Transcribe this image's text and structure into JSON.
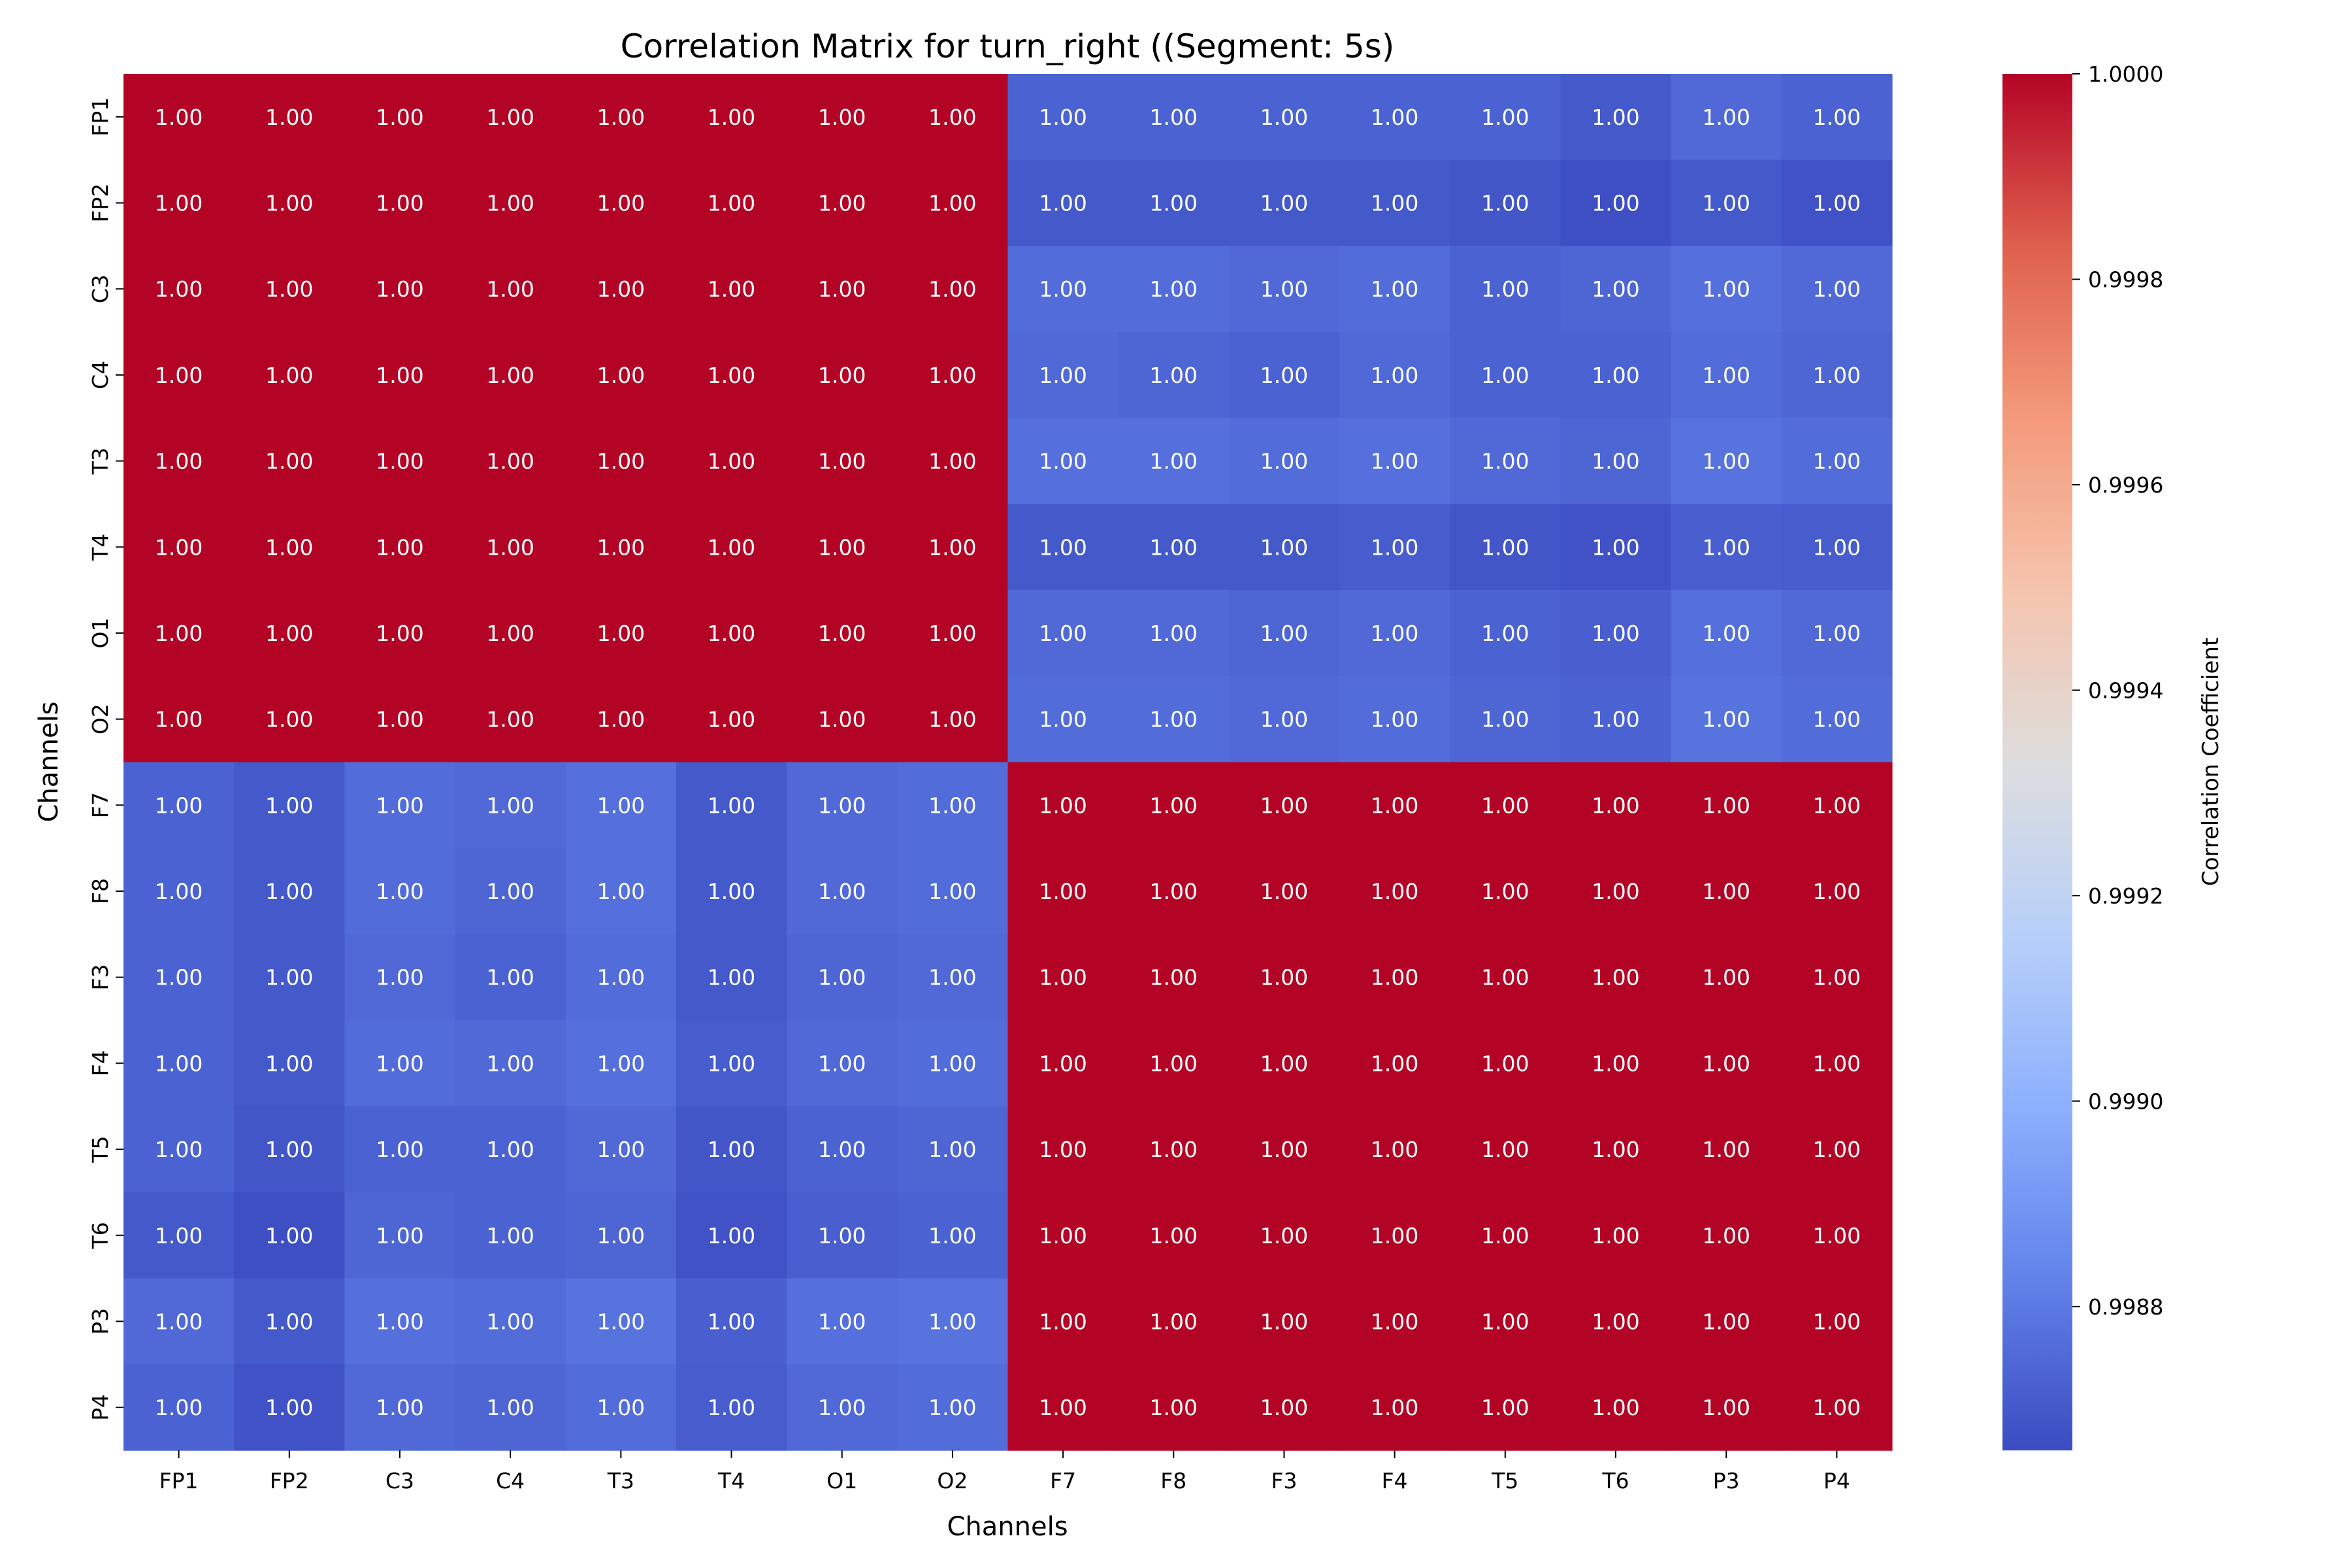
{
  "chart_data": {
    "type": "heatmap",
    "title": "Correlation Matrix for turn_right ((Segment: 5s)",
    "xlabel": "Channels",
    "ylabel": "Channels",
    "labels": [
      "FP1",
      "FP2",
      "C3",
      "C4",
      "T3",
      "T4",
      "O1",
      "O2",
      "F7",
      "F8",
      "F3",
      "F4",
      "T5",
      "T6",
      "P3",
      "P4"
    ],
    "annotation_format": "2 decimals",
    "colormap": "coolwarm",
    "colorbar": {
      "label": "Correlation Coefficient",
      "range": [
        0.99866,
        1.0
      ],
      "ticks": [
        "1.0000",
        "0.9998",
        "0.9996",
        "0.9994",
        "0.9992",
        "0.9990",
        "0.9988"
      ]
    },
    "cross_block_values": [
      [
        0.99873,
        0.99873,
        0.99873,
        0.99873,
        0.99873,
        0.9987,
        0.99875,
        0.99873
      ],
      [
        0.9987,
        0.9987,
        0.9987,
        0.9987,
        0.99869,
        0.99867,
        0.9987,
        0.99868
      ],
      [
        0.99876,
        0.99876,
        0.99875,
        0.99876,
        0.99873,
        0.99874,
        0.99877,
        0.99875
      ],
      [
        0.99875,
        0.99874,
        0.99873,
        0.99875,
        0.99873,
        0.99873,
        0.99876,
        0.99874
      ],
      [
        0.99877,
        0.99877,
        0.99876,
        0.99877,
        0.99875,
        0.99874,
        0.99878,
        0.99876
      ],
      [
        0.9987,
        0.9987,
        0.9987,
        0.99871,
        0.99869,
        0.99868,
        0.99872,
        0.99871
      ],
      [
        0.99875,
        0.99875,
        0.99874,
        0.99875,
        0.99873,
        0.99872,
        0.99877,
        0.99875
      ],
      [
        0.99876,
        0.99876,
        0.99875,
        0.99876,
        0.99874,
        0.99873,
        0.99878,
        0.99876
      ]
    ],
    "within_block_value": 1.0,
    "notes_rows_cols": "Matrix is symmetric; rows/cols FP1–O2 and F7–P4 form two blocks with ~1.0 correlation; cross_block_values rows are FP1–O2, columns F7–P4"
  }
}
